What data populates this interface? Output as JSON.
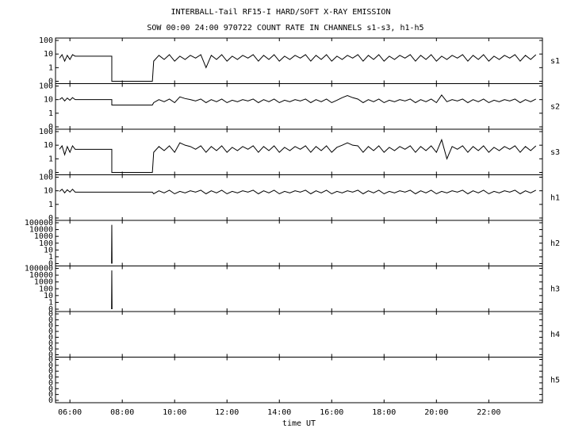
{
  "chart_data": {
    "type": "line",
    "title": "INTERBALL-Tail RF15-I HARD/SOFT X-RAY EMISSION",
    "subtitle": "SOW 00:00 24:00 970722  COUNT RATE IN CHANNELS s1-s3, h1-h5",
    "xlabel": "time UT",
    "xlim": [
      5.45,
      24.05
    ],
    "xticks": [
      {
        "value": 6,
        "label": "06:00"
      },
      {
        "value": 8,
        "label": "08:00"
      },
      {
        "value": 10,
        "label": "10:00"
      },
      {
        "value": 12,
        "label": "12:00"
      },
      {
        "value": 14,
        "label": "14:00"
      },
      {
        "value": 16,
        "label": "16:00"
      },
      {
        "value": 18,
        "label": "18:00"
      },
      {
        "value": 20,
        "label": "20:00"
      },
      {
        "value": 22,
        "label": "22:00"
      }
    ],
    "color": "#000000",
    "log_y": true,
    "panels": [
      {
        "name": "s1",
        "ylim": [
          0.1,
          100
        ],
        "yticks": [
          {
            "value": 0.1,
            "label": "0"
          },
          1,
          10,
          100
        ],
        "x": [
          5.6,
          5.7,
          5.8,
          5.9,
          6,
          6.1,
          6.2,
          7.6,
          7.6,
          9.15,
          9.2,
          9.4,
          9.6,
          9.8,
          10,
          10.2,
          10.4,
          10.6,
          10.8,
          11,
          11.2,
          11.4,
          11.6,
          11.8,
          12,
          12.2,
          12.4,
          12.6,
          12.8,
          13,
          13.2,
          13.4,
          13.6,
          13.8,
          14,
          14.2,
          14.4,
          14.6,
          14.8,
          15,
          15.2,
          15.4,
          15.6,
          15.8,
          16,
          16.2,
          16.4,
          16.6,
          16.8,
          17,
          17.2,
          17.4,
          17.6,
          17.8,
          18,
          18.2,
          18.4,
          18.6,
          18.8,
          19,
          19.2,
          19.4,
          19.6,
          19.8,
          20,
          20.2,
          20.4,
          20.6,
          20.8,
          21,
          21.2,
          21.4,
          21.6,
          21.8,
          22,
          22.2,
          22.4,
          22.6,
          22.8,
          23,
          23.2,
          23.4,
          23.6,
          23.8
        ],
        "values": [
          5,
          9,
          3,
          8,
          4,
          9,
          7,
          7,
          0.1,
          0.1,
          3,
          8,
          4,
          9,
          3,
          7,
          4,
          8,
          5,
          9,
          1,
          8,
          4,
          9,
          3,
          7,
          4,
          8,
          5,
          9,
          3,
          8,
          4,
          9,
          3,
          7,
          4,
          8,
          5,
          9,
          3,
          8,
          4,
          9,
          3,
          7,
          4,
          8,
          5,
          9,
          3,
          8,
          4,
          9,
          3,
          7,
          4,
          8,
          5,
          9,
          3,
          8,
          4,
          9,
          3,
          7,
          4,
          8,
          5,
          9,
          3,
          8,
          4,
          9,
          3,
          7,
          4,
          8,
          5,
          9,
          3,
          8,
          4,
          9
        ]
      },
      {
        "name": "s2",
        "ylim": [
          0.1,
          100
        ],
        "yticks": [
          {
            "value": 0.1,
            "label": "0"
          },
          1,
          10,
          100
        ],
        "x": [
          5.6,
          5.7,
          5.8,
          5.9,
          6,
          6.1,
          6.2,
          7.6,
          7.6,
          9.15,
          9.2,
          9.4,
          9.6,
          9.8,
          10,
          10.2,
          10.4,
          10.6,
          10.8,
          11,
          11.2,
          11.4,
          11.6,
          11.8,
          12,
          12.2,
          12.4,
          12.6,
          12.8,
          13,
          13.2,
          13.4,
          13.6,
          13.8,
          14,
          14.2,
          14.4,
          14.6,
          14.8,
          15,
          15.2,
          15.4,
          15.6,
          15.8,
          16,
          16.2,
          16.4,
          16.6,
          16.8,
          17,
          17.2,
          17.4,
          17.6,
          17.8,
          18,
          18.2,
          18.4,
          18.6,
          18.8,
          19,
          19.2,
          19.4,
          19.6,
          19.8,
          20,
          20.2,
          20.4,
          20.6,
          20.8,
          21,
          21.2,
          21.4,
          21.6,
          21.8,
          22,
          22.2,
          22.4,
          22.6,
          22.8,
          23,
          23.2,
          23.4,
          23.6,
          23.8
        ],
        "values": [
          10,
          14,
          8,
          13,
          9,
          14,
          10,
          10,
          4,
          4,
          6,
          10,
          7,
          11,
          6,
          16,
          12,
          10,
          8,
          11,
          6,
          10,
          7,
          11,
          6,
          9,
          7,
          10,
          8,
          11,
          6,
          10,
          7,
          11,
          6,
          9,
          7,
          10,
          8,
          11,
          6,
          10,
          7,
          11,
          6,
          9,
          14,
          20,
          14,
          11,
          6,
          10,
          7,
          11,
          6,
          9,
          7,
          10,
          8,
          11,
          6,
          10,
          7,
          11,
          6,
          22,
          7,
          10,
          8,
          11,
          6,
          10,
          7,
          11,
          6,
          9,
          7,
          10,
          8,
          11,
          6,
          10,
          7,
          11
        ]
      },
      {
        "name": "s3",
        "ylim": [
          0.1,
          100
        ],
        "yticks": [
          {
            "value": 0.1,
            "label": "0"
          },
          1,
          10,
          100
        ],
        "x": [
          5.6,
          5.7,
          5.8,
          5.9,
          6,
          6.1,
          6.2,
          7.6,
          7.6,
          9.15,
          9.2,
          9.4,
          9.6,
          9.8,
          10,
          10.2,
          10.4,
          10.6,
          10.8,
          11,
          11.2,
          11.4,
          11.6,
          11.8,
          12,
          12.2,
          12.4,
          12.6,
          12.8,
          13,
          13.2,
          13.4,
          13.6,
          13.8,
          14,
          14.2,
          14.4,
          14.6,
          14.8,
          15,
          15.2,
          15.4,
          15.6,
          15.8,
          16,
          16.2,
          16.4,
          16.6,
          16.8,
          17,
          17.2,
          17.4,
          17.6,
          17.8,
          18,
          18.2,
          18.4,
          18.6,
          18.8,
          19,
          19.2,
          19.4,
          19.6,
          19.8,
          20,
          20.2,
          20.4,
          20.6,
          20.8,
          21,
          21.2,
          21.4,
          21.6,
          21.8,
          22,
          22.2,
          22.4,
          22.6,
          22.8,
          23,
          23.2,
          23.4,
          23.6,
          23.8
        ],
        "values": [
          5,
          9,
          2,
          8,
          3,
          9,
          5,
          5,
          0.1,
          0.1,
          3,
          8,
          4,
          9,
          3,
          15,
          10,
          8,
          5,
          9,
          3,
          8,
          4,
          9,
          3,
          7,
          4,
          8,
          5,
          9,
          3,
          8,
          4,
          9,
          3,
          7,
          4,
          8,
          5,
          9,
          3,
          8,
          4,
          9,
          3,
          7,
          10,
          15,
          10,
          9,
          3,
          8,
          4,
          9,
          3,
          7,
          4,
          8,
          5,
          9,
          3,
          8,
          4,
          9,
          3,
          25,
          1,
          8,
          5,
          9,
          3,
          8,
          4,
          9,
          3,
          7,
          4,
          8,
          5,
          9,
          3,
          8,
          4,
          9
        ]
      },
      {
        "name": "h1",
        "ylim": [
          0.1,
          100
        ],
        "yticks": [
          {
            "value": 0.1,
            "label": "0"
          },
          1,
          10,
          100
        ],
        "x": [
          5.6,
          5.7,
          5.8,
          5.9,
          6,
          6.1,
          6.2,
          9.15,
          9.2,
          9.4,
          9.6,
          9.8,
          10,
          10.2,
          10.4,
          10.6,
          10.8,
          11,
          11.2,
          11.4,
          11.6,
          11.8,
          12,
          12.2,
          12.4,
          12.6,
          12.8,
          13,
          13.2,
          13.4,
          13.6,
          13.8,
          14,
          14.2,
          14.4,
          14.6,
          14.8,
          15,
          15.2,
          15.4,
          15.6,
          15.8,
          16,
          16.2,
          16.4,
          16.6,
          16.8,
          17,
          17.2,
          17.4,
          17.6,
          17.8,
          18,
          18.2,
          18.4,
          18.6,
          18.8,
          19,
          19.2,
          19.4,
          19.6,
          19.8,
          20,
          20.2,
          20.4,
          20.6,
          20.8,
          21,
          21.2,
          21.4,
          21.6,
          21.8,
          22,
          22.2,
          22.4,
          22.6,
          22.8,
          23,
          23.2,
          23.4,
          23.6,
          23.8
        ],
        "values": [
          9,
          13,
          7,
          12,
          8,
          13,
          8,
          8,
          6,
          10,
          7,
          11,
          6,
          9,
          7,
          10,
          8,
          11,
          6,
          10,
          7,
          11,
          6,
          9,
          7,
          10,
          8,
          11,
          6,
          10,
          7,
          11,
          6,
          9,
          7,
          10,
          8,
          11,
          6,
          10,
          7,
          11,
          6,
          9,
          7,
          10,
          8,
          11,
          6,
          10,
          7,
          11,
          6,
          9,
          7,
          10,
          8,
          11,
          6,
          10,
          7,
          11,
          6,
          9,
          7,
          10,
          8,
          11,
          6,
          10,
          7,
          11,
          6,
          9,
          7,
          10,
          8,
          11,
          6,
          10,
          7,
          11
        ]
      },
      {
        "name": "h2",
        "ylim": [
          0.1,
          100000
        ],
        "yticks": [
          {
            "value": 0.1,
            "label": "0"
          },
          1,
          10,
          100,
          1000,
          10000,
          100000
        ],
        "x": [
          7.59,
          7.6,
          7.61
        ],
        "values": [
          0.1,
          50000,
          0.1
        ]
      },
      {
        "name": "h3",
        "ylim": [
          0.1,
          100000
        ],
        "yticks": [
          {
            "value": 0.1,
            "label": "0"
          },
          1,
          10,
          100,
          1000,
          10000,
          100000
        ],
        "x": [
          7.59,
          7.6,
          7.61
        ],
        "values": [
          0.1,
          50000,
          0.1
        ]
      },
      {
        "name": "h4",
        "ylim": [
          1e-08,
          0.1
        ],
        "yticks": [
          {
            "value": 1e-08,
            "label": "0"
          },
          {
            "value": 1e-07,
            "label": "0"
          },
          {
            "value": 1e-06,
            "label": "0"
          },
          {
            "value": 1e-05,
            "label": "0"
          },
          {
            "value": 0.0001,
            "label": "0"
          },
          {
            "value": 0.001,
            "label": "0"
          },
          {
            "value": 0.01,
            "label": "0"
          },
          {
            "value": 0.1,
            "label": "0"
          }
        ]
      },
      {
        "name": "h5",
        "ylim": [
          1e-08,
          0.1
        ],
        "yticks": [
          {
            "value": 1e-08,
            "label": "0"
          },
          {
            "value": 1e-07,
            "label": "0"
          },
          {
            "value": 1e-06,
            "label": "0"
          },
          {
            "value": 1e-05,
            "label": "0"
          },
          {
            "value": 0.0001,
            "label": "0"
          },
          {
            "value": 0.001,
            "label": "0"
          },
          {
            "value": 0.01,
            "label": "0"
          },
          {
            "value": 0.1,
            "label": "0"
          }
        ]
      }
    ]
  }
}
